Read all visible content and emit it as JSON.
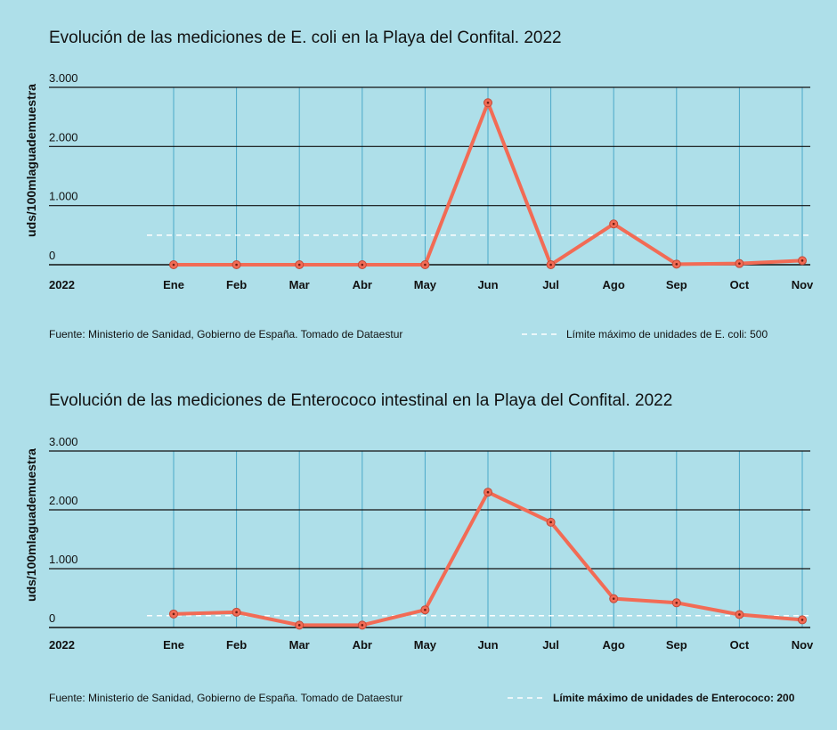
{
  "chart_data": [
    {
      "type": "line",
      "title": "Evolución de las mediciones de E. coli en la Playa del Confital. 2022",
      "ylabel": "uds/100mlaguademuestra",
      "year_label": "2022",
      "categories": [
        "Ene",
        "Feb",
        "Mar",
        "Abr",
        "May",
        "Jun",
        "Jul",
        "Ago",
        "Sep",
        "Oct",
        "Nov"
      ],
      "values": [
        0,
        0,
        0,
        0,
        0,
        2740,
        0,
        690,
        10,
        20,
        70
      ],
      "y_ticks": [
        0,
        1000,
        2000,
        3000
      ],
      "y_tick_labels": [
        "0",
        "1.000",
        "2.000",
        "3.000"
      ],
      "ylim": [
        0,
        3000
      ],
      "limit_value": 500,
      "source": "Fuente:  Ministerio  de Sanidad,  Gobierno  de  España.  Tomado  de  Dataestur",
      "legend": "Límite máximo de unidades de E. coli: 500",
      "line_color": "#f26b55",
      "limit_color": "#ffffff",
      "grid": true
    },
    {
      "type": "line",
      "title": "Evolución de las mediciones de Enterococo intestinal en la Playa del Confital. 2022",
      "ylabel": "uds/100mlaguademuestra",
      "year_label": "2022",
      "categories": [
        "Ene",
        "Feb",
        "Mar",
        "Abr",
        "May",
        "Jun",
        "Jul",
        "Ago",
        "Sep",
        "Oct",
        "Nov"
      ],
      "values": [
        230,
        260,
        40,
        40,
        300,
        2300,
        1790,
        490,
        420,
        220,
        130
      ],
      "y_ticks": [
        0,
        1000,
        2000,
        3000
      ],
      "y_tick_labels": [
        "0",
        "1.000",
        "2.000",
        "3.000"
      ],
      "ylim": [
        0,
        3000
      ],
      "limit_value": 200,
      "source": "Fuente:  Ministerio  de Sanidad,  Gobierno  de  España.  Tomado  de  Dataestur",
      "legend": "Límite  máximo  de  unidades  de Enterococo:  200",
      "line_color": "#f26b55",
      "limit_color": "#ffffff",
      "grid": true
    }
  ]
}
